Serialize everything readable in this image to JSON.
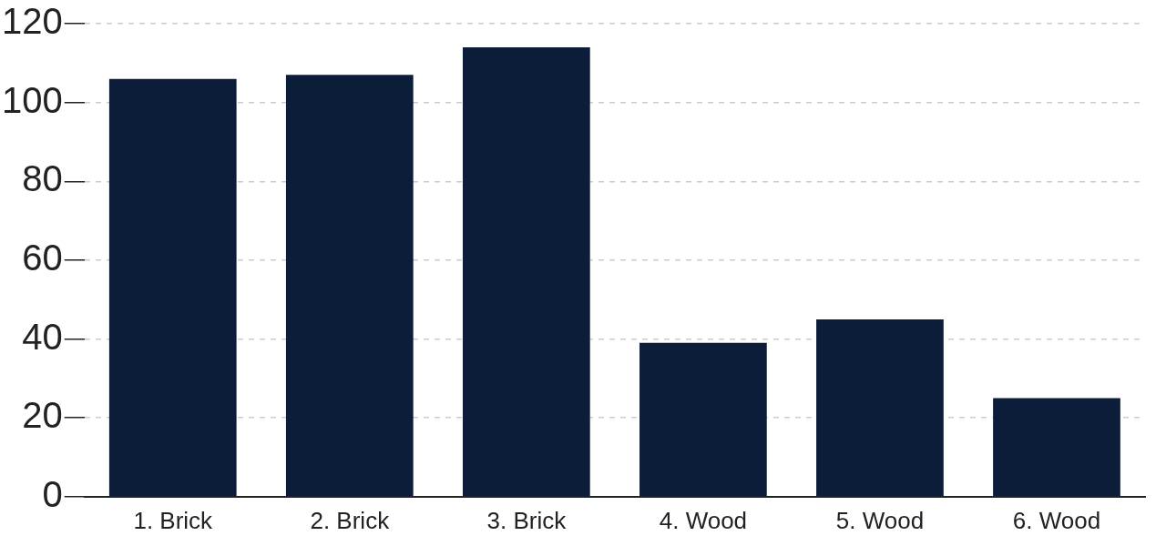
{
  "chart_data": {
    "type": "bar",
    "categories": [
      "1. Brick",
      "2. Brick",
      "3. Brick",
      "4. Wood",
      "5. Wood",
      "6. Wood"
    ],
    "values": [
      106,
      107,
      114,
      39,
      45,
      25
    ],
    "color": "#0b1d39",
    "ylim": [
      0,
      120
    ],
    "yticks": [
      0,
      20,
      40,
      60,
      80,
      100,
      120
    ],
    "grid": "y",
    "legend": false
  }
}
